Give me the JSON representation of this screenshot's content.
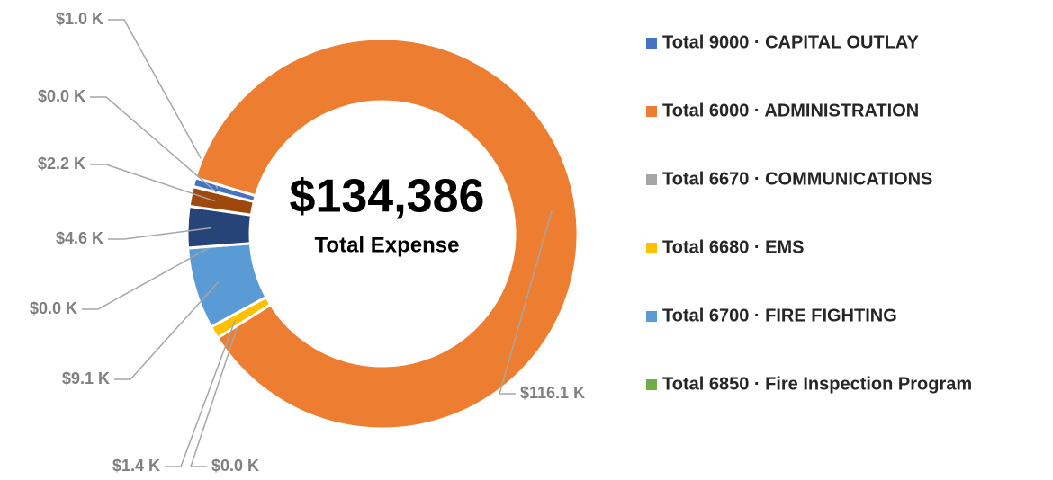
{
  "chart_data": {
    "type": "donut",
    "center_value": "$134,386",
    "center_label": "Total Expense",
    "categories": [
      "Total 9000 · CAPITAL OUTLAY",
      "Total 6000 · ADMINISTRATION",
      "Total 6670 · COMMUNICATIONS",
      "Total 6680 · EMS",
      "Total 6700 · FIRE FIGHTING",
      "Total 6850 · Fire Inspection Program",
      null,
      null,
      null
    ],
    "values": [
      1000,
      116086,
      0,
      1400,
      9100,
      0,
      4600,
      2200,
      0
    ],
    "value_labels": [
      "$1.0 K",
      "$116.1 K",
      "$0.0 K",
      "$1.4 K",
      "$9.1 K",
      "$0.0 K",
      "$4.6 K",
      "$2.2 K",
      "$0.0 K"
    ],
    "colors": [
      "#4472c4",
      "#ed7d31",
      "#a5a5a5",
      "#ffc000",
      "#5b9bd5",
      "#70ad47",
      "#264478",
      "#9e480e",
      "#636363"
    ],
    "legend": "right"
  }
}
